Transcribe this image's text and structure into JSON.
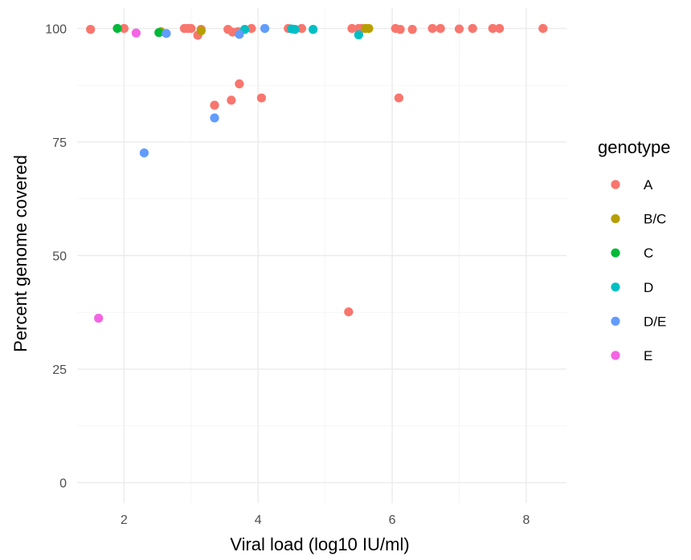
{
  "chart_data": {
    "type": "scatter",
    "xlabel": "Viral load (log10 IU/ml)",
    "ylabel": "Percent genome covered",
    "xlim": [
      1.3,
      8.6
    ],
    "ylim": [
      -4.5,
      104.5
    ],
    "x_ticks": [
      2,
      4,
      6,
      8
    ],
    "y_ticks": [
      0,
      25,
      50,
      75,
      100
    ],
    "x_tick_labels": [
      "2",
      "4",
      "6",
      "8"
    ],
    "y_tick_labels": [
      "0",
      "25",
      "50",
      "75",
      "100"
    ],
    "grid": true,
    "legend": {
      "title": "genotype",
      "placement": "right"
    },
    "series": [
      {
        "name": "A",
        "color": "#F8766D",
        "points": [
          [
            1.5,
            99.8
          ],
          [
            2.0,
            100
          ],
          [
            2.9,
            100
          ],
          [
            2.95,
            100
          ],
          [
            3.0,
            100
          ],
          [
            3.1,
            98.5
          ],
          [
            3.15,
            99.8
          ],
          [
            3.55,
            99.8
          ],
          [
            3.62,
            99.2
          ],
          [
            3.7,
            99.3
          ],
          [
            3.9,
            100
          ],
          [
            4.45,
            100
          ],
          [
            4.65,
            100
          ],
          [
            5.4,
            100
          ],
          [
            5.5,
            100
          ],
          [
            5.55,
            100
          ],
          [
            6.05,
            100
          ],
          [
            6.12,
            99.8
          ],
          [
            6.3,
            99.8
          ],
          [
            6.6,
            100
          ],
          [
            6.72,
            100
          ],
          [
            7.0,
            99.9
          ],
          [
            7.2,
            100
          ],
          [
            7.5,
            100
          ],
          [
            7.6,
            100
          ],
          [
            8.25,
            100
          ],
          [
            3.35,
            83.1
          ],
          [
            3.6,
            84.2
          ],
          [
            3.72,
            87.8
          ],
          [
            4.05,
            84.7
          ],
          [
            6.1,
            84.7
          ],
          [
            5.35,
            37.6
          ]
        ]
      },
      {
        "name": "B/C",
        "color": "#B79F00",
        "points": [
          [
            2.55,
            99.3
          ],
          [
            3.15,
            99.5
          ],
          [
            5.6,
            100
          ],
          [
            5.65,
            100
          ]
        ]
      },
      {
        "name": "C",
        "color": "#00BA38",
        "points": [
          [
            1.9,
            100
          ],
          [
            2.52,
            99.1
          ]
        ]
      },
      {
        "name": "D",
        "color": "#00BFC4",
        "points": [
          [
            3.8,
            99.8
          ],
          [
            4.5,
            99.9
          ],
          [
            4.55,
            99.8
          ],
          [
            4.82,
            99.8
          ],
          [
            5.5,
            98.6
          ]
        ]
      },
      {
        "name": "D/E",
        "color": "#619CFF",
        "points": [
          [
            2.63,
            98.9
          ],
          [
            3.72,
            98.7
          ],
          [
            4.1,
            100
          ],
          [
            3.35,
            80.3
          ],
          [
            2.3,
            72.6
          ]
        ]
      },
      {
        "name": "E",
        "color": "#F564E3",
        "points": [
          [
            2.18,
            99.0
          ],
          [
            1.62,
            36.2
          ]
        ]
      }
    ]
  }
}
